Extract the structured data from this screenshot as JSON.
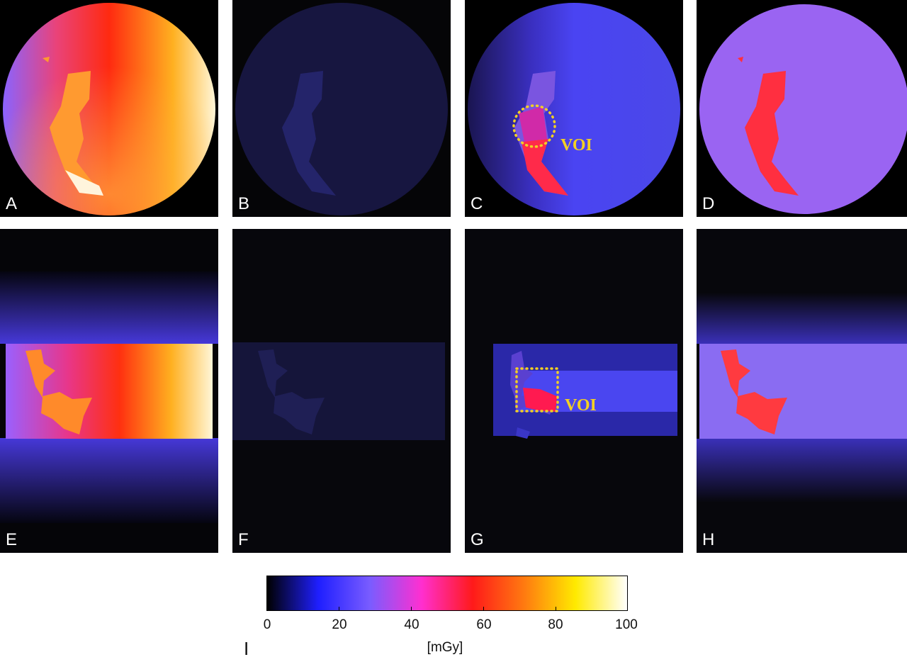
{
  "panels": [
    {
      "id": "A",
      "label": "A",
      "view": "axial",
      "intensity": "high"
    },
    {
      "id": "B",
      "label": "B",
      "view": "axial",
      "intensity": "very-low"
    },
    {
      "id": "C",
      "label": "C",
      "view": "axial",
      "intensity": "low",
      "annotation": "VOI"
    },
    {
      "id": "D",
      "label": "D",
      "view": "axial",
      "intensity": "medium"
    },
    {
      "id": "E",
      "label": "E",
      "view": "coronal",
      "intensity": "high"
    },
    {
      "id": "F",
      "label": "F",
      "view": "coronal",
      "intensity": "very-low"
    },
    {
      "id": "G",
      "label": "G",
      "view": "coronal",
      "intensity": "low",
      "annotation": "VOI"
    },
    {
      "id": "H",
      "label": "H",
      "view": "coronal",
      "intensity": "medium"
    }
  ],
  "colorbar": {
    "ticks": [
      "0",
      "20",
      "40",
      "60",
      "80",
      "100"
    ],
    "unit": "[mGy]",
    "min": 0,
    "max": 100,
    "colormap": [
      "#000000",
      "#1f1fff",
      "#7a5cff",
      "#ff2fd0",
      "#ff1a1a",
      "#ff7a10",
      "#ffea00",
      "#ffffff"
    ]
  },
  "figure_label": "I",
  "annotation_color": "#f2d024"
}
